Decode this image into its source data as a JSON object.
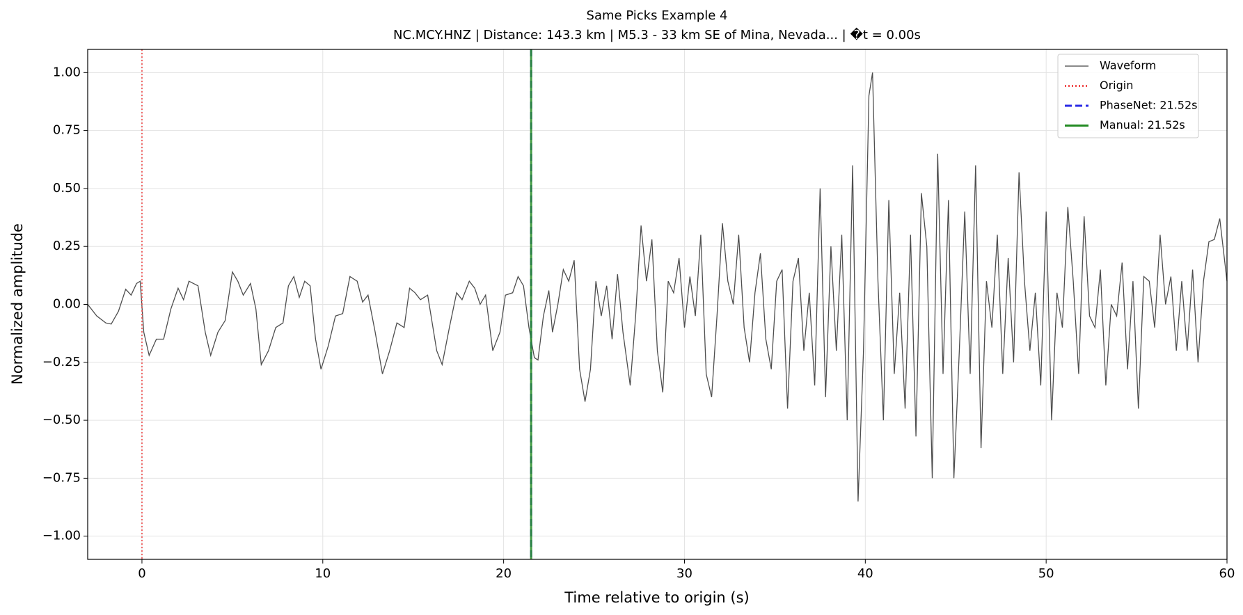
{
  "chart_data": {
    "type": "line",
    "title": "Same Picks Example 4",
    "subtitle": "NC.MCY.HNZ | Distance: 143.3 km | M5.3 - 33 km SE of Mina, Nevada... | �t = 0.00s",
    "xlabel": "Time relative to origin (s)",
    "ylabel": "Normalized amplitude",
    "xlim": [
      -3,
      60
    ],
    "xticks": [
      0,
      10,
      20,
      30,
      40,
      50,
      60
    ],
    "ylim": [
      -1.1,
      1.1
    ],
    "yticks": [
      {
        "value": -1,
        "label": "−1.00"
      },
      {
        "value": -0.75,
        "label": "−0.75"
      },
      {
        "value": -0.5,
        "label": "−0.50"
      },
      {
        "value": -0.25,
        "label": "−0.25"
      },
      {
        "value": 0,
        "label": "0.00"
      },
      {
        "value": 0.25,
        "label": "0.25"
      },
      {
        "value": 0.5,
        "label": "0.50"
      },
      {
        "value": 0.75,
        "label": "0.75"
      },
      {
        "value": 1,
        "label": "1.00"
      }
    ],
    "grid": true,
    "legend": "upper right",
    "x": [
      -3,
      -2.5,
      -2,
      -1.7,
      -1.3,
      -0.9,
      -0.6,
      -0.3,
      -0.1,
      0.1,
      0.4,
      0.8,
      1.2,
      1.6,
      2.0,
      2.3,
      2.6,
      3.1,
      3.5,
      3.8,
      4.2,
      4.6,
      5.0,
      5.3,
      5.6,
      6.0,
      6.3,
      6.6,
      7.0,
      7.4,
      7.8,
      8.1,
      8.4,
      8.7,
      9.0,
      9.3,
      9.6,
      9.9,
      10.3,
      10.7,
      11.1,
      11.5,
      11.9,
      12.2,
      12.5,
      12.9,
      13.3,
      13.7,
      14.1,
      14.5,
      14.8,
      15.1,
      15.4,
      15.8,
      16.3,
      16.6,
      17.0,
      17.4,
      17.7,
      18.1,
      18.4,
      18.7,
      19.0,
      19.4,
      19.8,
      20.1,
      20.5,
      20.8,
      21.1,
      21.4,
      21.7,
      21.9,
      22.2,
      22.5,
      22.7,
      23.0,
      23.3,
      23.6,
      23.9,
      24.2,
      24.5,
      24.8,
      25.1,
      25.4,
      25.7,
      26.0,
      26.3,
      26.6,
      27.0,
      27.3,
      27.6,
      27.9,
      28.2,
      28.5,
      28.8,
      29.1,
      29.4,
      29.7,
      30.0,
      30.3,
      30.6,
      30.9,
      31.2,
      31.5,
      31.8,
      32.1,
      32.4,
      32.7,
      33.0,
      33.3,
      33.6,
      33.9,
      34.2,
      34.5,
      34.8,
      35.1,
      35.4,
      35.7,
      36.0,
      36.3,
      36.6,
      36.9,
      37.2,
      37.5,
      37.8,
      38.1,
      38.4,
      38.7,
      39.0,
      39.3,
      39.6,
      39.9,
      40.2,
      40.4,
      40.7,
      41.0,
      41.3,
      41.6,
      41.9,
      42.2,
      42.5,
      42.8,
      43.1,
      43.4,
      43.7,
      44.0,
      44.3,
      44.6,
      44.9,
      45.2,
      45.5,
      45.8,
      46.1,
      46.4,
      46.7,
      47.0,
      47.3,
      47.6,
      47.9,
      48.2,
      48.5,
      48.8,
      49.1,
      49.4,
      49.7,
      50.0,
      50.3,
      50.6,
      50.9,
      51.2,
      51.5,
      51.8,
      52.1,
      52.4,
      52.7,
      53.0,
      53.3,
      53.6,
      53.9,
      54.2,
      54.5,
      54.8,
      55.1,
      55.4,
      55.7,
      56.0,
      56.3,
      56.6,
      56.9,
      57.2,
      57.5,
      57.8,
      58.1,
      58.4,
      58.7,
      59.0,
      59.3,
      59.6,
      60.0
    ],
    "series": [
      {
        "name": "Waveform",
        "color": "#444444",
        "values": [
          0,
          -0.05,
          -0.08,
          -0.085,
          -0.03,
          0.065,
          0.04,
          0.09,
          0.1,
          -0.12,
          -0.22,
          -0.15,
          -0.15,
          -0.02,
          0.07,
          0.02,
          0.1,
          0.08,
          -0.12,
          -0.22,
          -0.12,
          -0.07,
          0.14,
          0.1,
          0.04,
          0.09,
          -0.02,
          -0.26,
          -0.2,
          -0.1,
          -0.08,
          0.08,
          0.12,
          0.03,
          0.1,
          0.08,
          -0.15,
          -0.28,
          -0.18,
          -0.05,
          -0.04,
          0.12,
          0.1,
          0.01,
          0.04,
          -0.12,
          -0.3,
          -0.2,
          -0.08,
          -0.1,
          0.07,
          0.05,
          0.02,
          0.04,
          -0.2,
          -0.26,
          -0.1,
          0.05,
          0.02,
          0.1,
          0.07,
          0.0,
          0.04,
          -0.2,
          -0.12,
          0.04,
          0.05,
          0.12,
          0.08,
          -0.1,
          -0.23,
          -0.24,
          -0.05,
          0.06,
          -0.12,
          0.0,
          0.15,
          0.1,
          0.19,
          -0.28,
          -0.42,
          -0.28,
          0.1,
          -0.05,
          0.08,
          -0.15,
          0.13,
          -0.12,
          -0.35,
          -0.05,
          0.34,
          0.1,
          0.28,
          -0.2,
          -0.38,
          0.1,
          0.05,
          0.2,
          -0.1,
          0.12,
          -0.05,
          0.3,
          -0.3,
          -0.4,
          -0.05,
          0.35,
          0.1,
          0.0,
          0.3,
          -0.1,
          -0.25,
          0.05,
          0.22,
          -0.15,
          -0.28,
          0.1,
          0.15,
          -0.45,
          0.1,
          0.2,
          -0.2,
          0.05,
          -0.35,
          0.5,
          -0.4,
          0.25,
          -0.2,
          0.3,
          -0.5,
          0.6,
          -0.85,
          -0.2,
          0.9,
          1.0,
          0.1,
          -0.5,
          0.45,
          -0.3,
          0.05,
          -0.45,
          0.3,
          -0.57,
          0.48,
          0.25,
          -0.75,
          0.65,
          -0.3,
          0.45,
          -0.75,
          -0.2,
          0.4,
          -0.3,
          0.6,
          -0.62,
          0.1,
          -0.1,
          0.3,
          -0.3,
          0.2,
          -0.25,
          0.57,
          0.1,
          -0.2,
          0.05,
          -0.35,
          0.4,
          -0.5,
          0.05,
          -0.1,
          0.42,
          0.1,
          -0.3,
          0.38,
          -0.05,
          -0.1,
          0.15,
          -0.35,
          0.0,
          -0.05,
          0.18,
          -0.28,
          0.1,
          -0.45,
          0.12,
          0.1,
          -0.1,
          0.3,
          0.0,
          0.12,
          -0.2,
          0.1,
          -0.2,
          0.15,
          -0.25,
          0.1,
          0.27,
          0.28,
          0.37,
          0.1
        ]
      }
    ],
    "vlines": [
      {
        "name": "Origin",
        "x": 0,
        "color": "#f05050",
        "style": "dotted"
      },
      {
        "name": "PhaseNet: 21.52s",
        "x": 21.52,
        "color": "#2a2ae6",
        "style": "dashed"
      },
      {
        "name": "Manual: 21.52s",
        "x": 21.52,
        "color": "#228b22",
        "style": "solid"
      }
    ]
  }
}
